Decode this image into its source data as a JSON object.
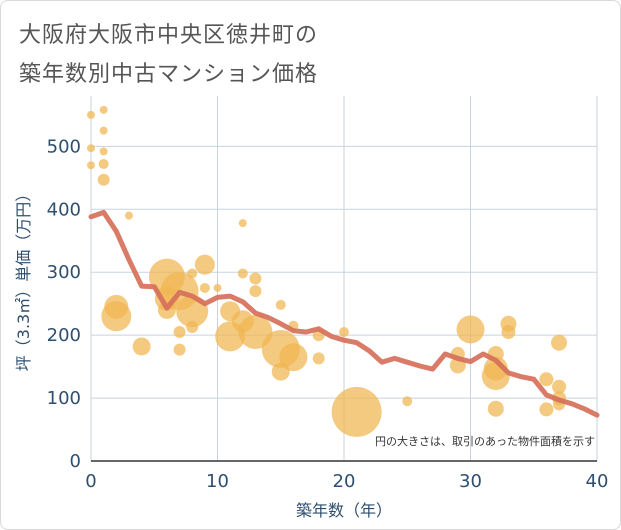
{
  "title_lines": [
    "大阪府大阪市中央区徳井町の",
    "築年数別中古マンション価格"
  ],
  "colors": {
    "bubble": "#f0b550",
    "line": "#d6705a",
    "grid": "#c8d3dd",
    "axis_text": "#2f4f6f",
    "title_text": "#555555"
  },
  "chart_data": {
    "type": "scatter",
    "title": "大阪府大阪市中央区徳井町の築年数別中古マンション価格",
    "xlabel": "築年数（年）",
    "ylabel": "坪（3.3㎡）単価（万円）",
    "xlim": [
      0,
      40
    ],
    "ylim": [
      0,
      580
    ],
    "xticks": [
      0,
      10,
      20,
      30,
      40
    ],
    "yticks": [
      0,
      100,
      200,
      300,
      400,
      500
    ],
    "grid": true,
    "note": "円の大きさは、取引のあった物件面積を示す",
    "bubbles": [
      {
        "x": 0,
        "y": 550,
        "s": 4
      },
      {
        "x": 0,
        "y": 497,
        "s": 4
      },
      {
        "x": 0,
        "y": 470,
        "s": 4
      },
      {
        "x": 1,
        "y": 558,
        "s": 4
      },
      {
        "x": 1,
        "y": 525,
        "s": 4
      },
      {
        "x": 1,
        "y": 492,
        "s": 4
      },
      {
        "x": 1,
        "y": 472,
        "s": 5
      },
      {
        "x": 1,
        "y": 447,
        "s": 6
      },
      {
        "x": 2,
        "y": 245,
        "s": 12
      },
      {
        "x": 2,
        "y": 230,
        "s": 15
      },
      {
        "x": 3,
        "y": 390,
        "s": 4
      },
      {
        "x": 4,
        "y": 182,
        "s": 9
      },
      {
        "x": 6,
        "y": 293,
        "s": 18
      },
      {
        "x": 6,
        "y": 258,
        "s": 12
      },
      {
        "x": 6,
        "y": 240,
        "s": 9
      },
      {
        "x": 7,
        "y": 270,
        "s": 19
      },
      {
        "x": 7,
        "y": 205,
        "s": 6
      },
      {
        "x": 7,
        "y": 177,
        "s": 6
      },
      {
        "x": 8,
        "y": 298,
        "s": 5
      },
      {
        "x": 8,
        "y": 238,
        "s": 16
      },
      {
        "x": 8,
        "y": 213,
        "s": 6
      },
      {
        "x": 9,
        "y": 312,
        "s": 10
      },
      {
        "x": 9,
        "y": 275,
        "s": 5
      },
      {
        "x": 10,
        "y": 275,
        "s": 4
      },
      {
        "x": 11,
        "y": 238,
        "s": 10
      },
      {
        "x": 11,
        "y": 198,
        "s": 15
      },
      {
        "x": 12,
        "y": 378,
        "s": 4
      },
      {
        "x": 12,
        "y": 298,
        "s": 5
      },
      {
        "x": 12,
        "y": 222,
        "s": 11
      },
      {
        "x": 13,
        "y": 290,
        "s": 6
      },
      {
        "x": 13,
        "y": 270,
        "s": 6
      },
      {
        "x": 13,
        "y": 205,
        "s": 17
      },
      {
        "x": 15,
        "y": 248,
        "s": 5
      },
      {
        "x": 15,
        "y": 178,
        "s": 19
      },
      {
        "x": 15,
        "y": 142,
        "s": 9
      },
      {
        "x": 16,
        "y": 215,
        "s": 5
      },
      {
        "x": 16,
        "y": 165,
        "s": 14
      },
      {
        "x": 18,
        "y": 200,
        "s": 6
      },
      {
        "x": 18,
        "y": 163,
        "s": 6
      },
      {
        "x": 20,
        "y": 205,
        "s": 5
      },
      {
        "x": 21,
        "y": 78,
        "s": 25
      },
      {
        "x": 25,
        "y": 95,
        "s": 5
      },
      {
        "x": 29,
        "y": 170,
        "s": 7
      },
      {
        "x": 29,
        "y": 152,
        "s": 8
      },
      {
        "x": 30,
        "y": 209,
        "s": 14
      },
      {
        "x": 32,
        "y": 170,
        "s": 8
      },
      {
        "x": 32,
        "y": 147,
        "s": 12
      },
      {
        "x": 32,
        "y": 135,
        "s": 14
      },
      {
        "x": 32,
        "y": 83,
        "s": 8
      },
      {
        "x": 33,
        "y": 218,
        "s": 8
      },
      {
        "x": 33,
        "y": 205,
        "s": 7
      },
      {
        "x": 36,
        "y": 130,
        "s": 7
      },
      {
        "x": 36,
        "y": 82,
        "s": 7
      },
      {
        "x": 37,
        "y": 188,
        "s": 8
      },
      {
        "x": 37,
        "y": 118,
        "s": 7
      },
      {
        "x": 37,
        "y": 100,
        "s": 7
      },
      {
        "x": 37,
        "y": 90,
        "s": 6
      }
    ],
    "trend": {
      "x": [
        0,
        1,
        2,
        3,
        4,
        5,
        6,
        7,
        8,
        9,
        10,
        11,
        12,
        13,
        14,
        15,
        16,
        17,
        18,
        19,
        20,
        21,
        22,
        23,
        24,
        25,
        26,
        27,
        28,
        29,
        30,
        31,
        32,
        33,
        34,
        35,
        36,
        37,
        38,
        39,
        40
      ],
      "y": [
        388,
        395,
        365,
        320,
        278,
        277,
        243,
        268,
        262,
        250,
        260,
        262,
        253,
        235,
        228,
        218,
        207,
        205,
        210,
        198,
        192,
        188,
        175,
        157,
        163,
        157,
        151,
        146,
        170,
        163,
        158,
        170,
        160,
        140,
        134,
        130,
        105,
        97,
        91,
        83,
        73
      ]
    }
  }
}
